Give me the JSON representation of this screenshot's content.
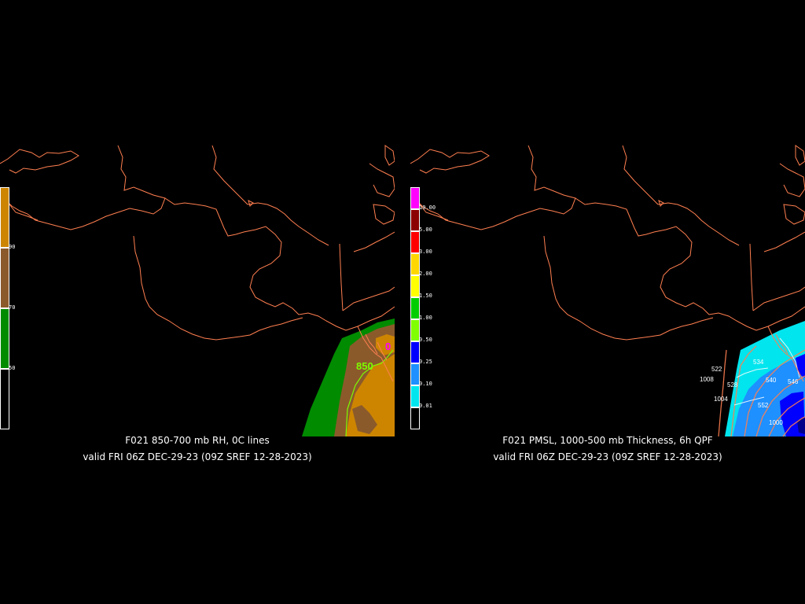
{
  "left_panel": {
    "title": "F021 850-700 mb RH, 0C lines",
    "valid": "valid FRI 06Z DEC-29-23 (09Z SREF 12-28-2023)",
    "contour_label": "850",
    "colorbar": {
      "segments": [
        {
          "color": "#cd8500",
          "label": ""
        },
        {
          "color": "#8b5a2b",
          "label": "90"
        },
        {
          "color": "#008b00",
          "label": "70"
        },
        {
          "color": "#000000",
          "label": "50"
        }
      ]
    }
  },
  "right_panel": {
    "title": "F021 PMSL, 1000-500 mb Thickness, 6h QPF",
    "valid": "valid FRI 06Z DEC-29-23 (09Z SREF 12-28-2023)",
    "thickness_labels": [
      "522",
      "528",
      "534",
      "540",
      "546",
      "552"
    ],
    "pressure_labels": [
      "1008",
      "1004",
      "1000"
    ],
    "colorbar": {
      "segments": [
        {
          "color": "#ff00ff",
          "label": "10.00"
        },
        {
          "color": "#8b0000",
          "label": "5.00"
        },
        {
          "color": "#ff0000",
          "label": "3.00"
        },
        {
          "color": "#ffd700",
          "label": "2.00"
        },
        {
          "color": "#ffff00",
          "label": "1.50"
        },
        {
          "color": "#00cd00",
          "label": "1.00"
        },
        {
          "color": "#7fff00",
          "label": "0.50"
        },
        {
          "color": "#0000ff",
          "label": "0.25"
        },
        {
          "color": "#1e90ff",
          "label": "0.10"
        },
        {
          "color": "#00e5ee",
          "label": "0.01"
        },
        {
          "color": "#000000",
          "label": ""
        }
      ]
    }
  },
  "colors": {
    "coastline": "#ff7f50",
    "background": "#000000",
    "thickness_line": "#ff7f50",
    "zero_c_line": "#7cfc00"
  }
}
